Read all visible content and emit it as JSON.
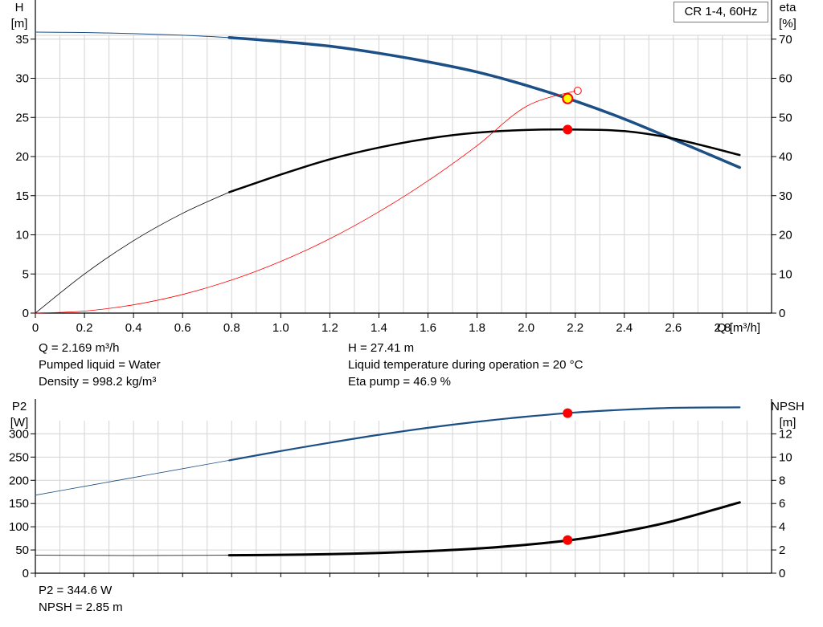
{
  "legend": {
    "label": "CR 1-4, 60Hz"
  },
  "info": {
    "flow": "Q = 2.169 m³/h",
    "head": "H = 27.41 m",
    "liquid": "Pumped liquid = Water",
    "temperature": "Liquid temperature during operation = 20 °C",
    "density": "Density = 998.2 kg/m³",
    "eta": "Eta pump = 46.9 %",
    "p2": "P2 = 344.6 W",
    "npsh": "NPSH = 2.85 m"
  },
  "colors": {
    "blue": "#1b4f85",
    "black": "#000000",
    "red": "#ff0000",
    "yellow": "#ffff00",
    "grid": "#d3d3d3"
  },
  "chart_data": [
    {
      "type": "line",
      "id": "upper",
      "xlabel": "Q [m³/h]",
      "ylabel_left": [
        "H",
        "[m]"
      ],
      "ylabel_right": [
        "eta",
        "[%]"
      ],
      "xlim": [
        0,
        3.0
      ],
      "ylim_left": [
        0,
        40
      ],
      "ylim_right": [
        0,
        80
      ],
      "x_ticks": [
        "0",
        "0.2",
        "0.4",
        "0.6",
        "0.8",
        "1.0",
        "1.2",
        "1.4",
        "1.6",
        "1.8",
        "2.0",
        "2.2",
        "2.4",
        "2.6",
        "2.8"
      ],
      "y_ticks_left": [
        "0",
        "5",
        "10",
        "15",
        "20",
        "25",
        "30",
        "35"
      ],
      "y_ticks_right": [
        "0",
        "10",
        "20",
        "30",
        "40",
        "50",
        "60",
        "70"
      ],
      "grid": true,
      "series": [
        {
          "id": "head-thin",
          "axis": "left",
          "color": "blue",
          "width": 1,
          "x": [
            0,
            0.2,
            0.4,
            0.6,
            0.79
          ],
          "y": [
            35.9,
            35.85,
            35.7,
            35.5,
            35.2
          ]
        },
        {
          "id": "head",
          "axis": "left",
          "color": "blue",
          "width": 3.5,
          "x": [
            0.79,
            1.0,
            1.2,
            1.4,
            1.6,
            1.8,
            2.0,
            2.2,
            2.4,
            2.6,
            2.87
          ],
          "y": [
            35.2,
            34.7,
            34.1,
            33.2,
            32.1,
            30.8,
            29.1,
            27.1,
            24.8,
            22.2,
            18.6
          ]
        },
        {
          "id": "eta-thin",
          "axis": "right",
          "color": "black",
          "width": 0.8,
          "x": [
            0,
            0.2,
            0.4,
            0.6,
            0.79
          ],
          "y": [
            0,
            10.0,
            18.5,
            25.5,
            30.9
          ]
        },
        {
          "id": "eta",
          "axis": "right",
          "color": "black",
          "width": 2.5,
          "x": [
            0.79,
            1.0,
            1.2,
            1.4,
            1.6,
            1.8,
            2.0,
            2.2,
            2.4,
            2.6,
            2.87
          ],
          "y": [
            30.9,
            35.4,
            39.3,
            42.3,
            44.6,
            46.1,
            46.8,
            46.9,
            46.5,
            44.6,
            40.4
          ]
        },
        {
          "id": "system",
          "axis": "left",
          "color": "red",
          "width": 0.8,
          "x": [
            0,
            0.2,
            0.4,
            0.6,
            0.8,
            1.0,
            1.2,
            1.4,
            1.6,
            1.8,
            2.0,
            2.2
          ],
          "y": [
            0,
            0.26,
            1.06,
            2.38,
            4.23,
            6.6,
            9.5,
            12.95,
            16.9,
            21.4,
            26.4,
            28.4
          ]
        }
      ],
      "points": [
        {
          "id": "operating-point",
          "axis": "left",
          "x": 2.169,
          "y": 27.41,
          "fill": "yellow",
          "stroke": "red",
          "r": 6
        },
        {
          "id": "eta-point",
          "axis": "right",
          "x": 2.169,
          "y": 46.9,
          "fill": "red",
          "stroke": "red",
          "r": 5.5
        },
        {
          "id": "end-marker",
          "axis": "left",
          "x": 2.21,
          "y": 28.4,
          "fill": "none",
          "stroke": "red",
          "r": 4.5
        }
      ]
    },
    {
      "type": "line",
      "id": "lower",
      "ylabel_left": [
        "P2",
        "[W]"
      ],
      "ylabel_right": [
        "NPSH",
        "[m]"
      ],
      "xlim": [
        0,
        3.0
      ],
      "ylim_left": [
        0,
        375
      ],
      "ylim_right": [
        0,
        15
      ],
      "y_ticks_left": [
        "0",
        "50",
        "100",
        "150",
        "200",
        "250",
        "300"
      ],
      "y_ticks_right": [
        "0",
        "2",
        "4",
        "6",
        "8",
        "10",
        "12"
      ],
      "grid": true,
      "series": [
        {
          "id": "p2-thin",
          "axis": "left",
          "color": "blue",
          "width": 0.8,
          "x": [
            0,
            0.2,
            0.4,
            0.6,
            0.79
          ],
          "y": [
            168,
            187,
            206,
            225,
            243
          ]
        },
        {
          "id": "p2",
          "axis": "left",
          "color": "blue",
          "width": 2.2,
          "x": [
            0.79,
            1.0,
            1.2,
            1.4,
            1.6,
            1.8,
            2.0,
            2.2,
            2.4,
            2.6,
            2.87
          ],
          "y": [
            243,
            263,
            281,
            298,
            313,
            326,
            337,
            346,
            352,
            356,
            357
          ]
        },
        {
          "id": "npsh-thin",
          "axis": "right",
          "color": "black",
          "width": 0.8,
          "x": [
            0,
            0.4,
            0.79
          ],
          "y": [
            1.55,
            1.52,
            1.55
          ]
        },
        {
          "id": "npsh",
          "axis": "right",
          "color": "black",
          "width": 3,
          "x": [
            0.79,
            1.0,
            1.2,
            1.4,
            1.6,
            1.8,
            2.0,
            2.2,
            2.4,
            2.6,
            2.87
          ],
          "y": [
            1.55,
            1.58,
            1.64,
            1.75,
            1.9,
            2.12,
            2.45,
            2.9,
            3.6,
            4.5,
            6.1
          ]
        }
      ],
      "points": [
        {
          "id": "p2-point",
          "axis": "left",
          "x": 2.169,
          "y": 344.6,
          "fill": "red",
          "stroke": "red",
          "r": 5.5
        },
        {
          "id": "npsh-point",
          "axis": "right",
          "x": 2.169,
          "y": 2.85,
          "fill": "red",
          "stroke": "red",
          "r": 5.5
        }
      ]
    }
  ]
}
